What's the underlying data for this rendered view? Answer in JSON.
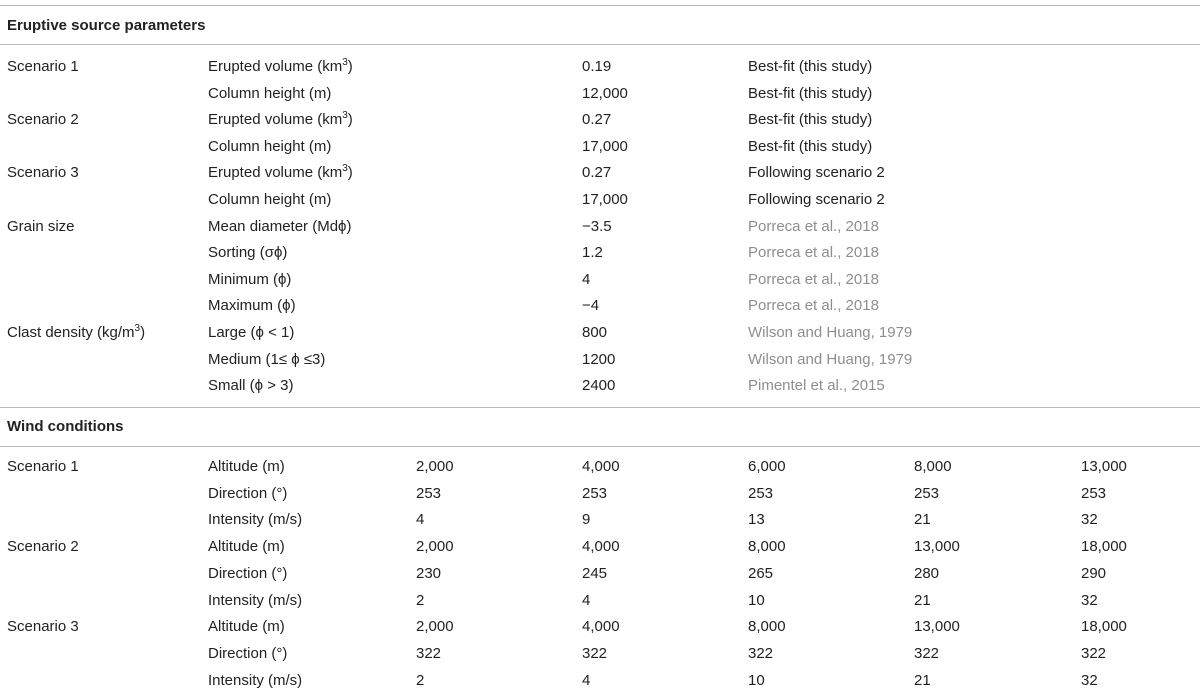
{
  "eruptive": {
    "title": "Eruptive source parameters",
    "rows": [
      {
        "group": "Scenario 1",
        "param": "Erupted volume (km",
        "sup": "3",
        "param_after": ")",
        "value": "0.19",
        "source": "Best-fit (this study)",
        "source_ref": false
      },
      {
        "group": "",
        "param": "Column height (m)",
        "sup": "",
        "param_after": "",
        "value": "12,000",
        "source": "Best-fit (this study)",
        "source_ref": false
      },
      {
        "group": "Scenario 2",
        "param": "Erupted volume (km",
        "sup": "3",
        "param_after": ")",
        "value": "0.27",
        "source": "Best-fit (this study)",
        "source_ref": false
      },
      {
        "group": "",
        "param": "Column height (m)",
        "sup": "",
        "param_after": "",
        "value": "17,000",
        "source": "Best-fit (this study)",
        "source_ref": false
      },
      {
        "group": "Scenario 3",
        "param": "Erupted volume (km",
        "sup": "3",
        "param_after": ")",
        "value": "0.27",
        "source": "Following scenario 2",
        "source_ref": false
      },
      {
        "group": "",
        "param": "Column height (m)",
        "sup": "",
        "param_after": "",
        "value": "17,000",
        "source": "Following scenario 2",
        "source_ref": false
      },
      {
        "group": "Grain size",
        "param": "Mean diameter (Mdϕ)",
        "sup": "",
        "param_after": "",
        "value": "−3.5",
        "source": "Porreca et al., 2018",
        "source_ref": true
      },
      {
        "group": "",
        "param": "Sorting (σϕ)",
        "sup": "",
        "param_after": "",
        "value": "1.2",
        "source": "Porreca et al., 2018",
        "source_ref": true
      },
      {
        "group": "",
        "param": "Minimum (ϕ)",
        "sup": "",
        "param_after": "",
        "value": "4",
        "source": "Porreca et al., 2018",
        "source_ref": true
      },
      {
        "group": "",
        "param": "Maximum (ϕ)",
        "sup": "",
        "param_after": "",
        "value": "−4",
        "source": "Porreca et al., 2018",
        "source_ref": true
      },
      {
        "group": "Clast density (kg/m",
        "group_sup": "3",
        "group_after": ")",
        "param": "Large (ϕ < 1)",
        "sup": "",
        "param_after": "",
        "value": "800",
        "source": "Wilson and Huang, 1979",
        "source_ref": true
      },
      {
        "group": "",
        "param": "Medium (1≤ ϕ ≤3)",
        "sup": "",
        "param_after": "",
        "value": "1200",
        "source": "Wilson and Huang, 1979",
        "source_ref": true
      },
      {
        "group": "",
        "param": "Small (ϕ > 3)",
        "sup": "",
        "param_after": "",
        "value": "2400",
        "source": "Pimentel et al., 2015",
        "source_ref": true
      }
    ]
  },
  "wind": {
    "title": "Wind conditions",
    "rows": [
      {
        "group": "Scenario 1",
        "param": "Altitude (m)",
        "values": [
          "2,000",
          "4,000",
          "6,000",
          "8,000",
          "13,000"
        ]
      },
      {
        "group": "",
        "param": "Direction (°)",
        "values": [
          "253",
          "253",
          "253",
          "253",
          "253"
        ]
      },
      {
        "group": "",
        "param": "Intensity (m/s)",
        "values": [
          "4",
          "9",
          "13",
          "21",
          "32"
        ]
      },
      {
        "group": "Scenario 2",
        "param": "Altitude (m)",
        "values": [
          "2,000",
          "4,000",
          "8,000",
          "13,000",
          "18,000"
        ]
      },
      {
        "group": "",
        "param": "Direction (°)",
        "values": [
          "230",
          "245",
          "265",
          "280",
          "290"
        ]
      },
      {
        "group": "",
        "param": "Intensity (m/s)",
        "values": [
          "2",
          "4",
          "10",
          "21",
          "32"
        ]
      },
      {
        "group": "Scenario 3",
        "param": "Altitude (m)",
        "values": [
          "2,000",
          "4,000",
          "8,000",
          "13,000",
          "18,000"
        ]
      },
      {
        "group": "",
        "param": "Direction (°)",
        "values": [
          "322",
          "322",
          "322",
          "322",
          "322"
        ]
      },
      {
        "group": "",
        "param": "Intensity (m/s)",
        "values": [
          "2",
          "4",
          "10",
          "21",
          "32"
        ]
      }
    ]
  }
}
